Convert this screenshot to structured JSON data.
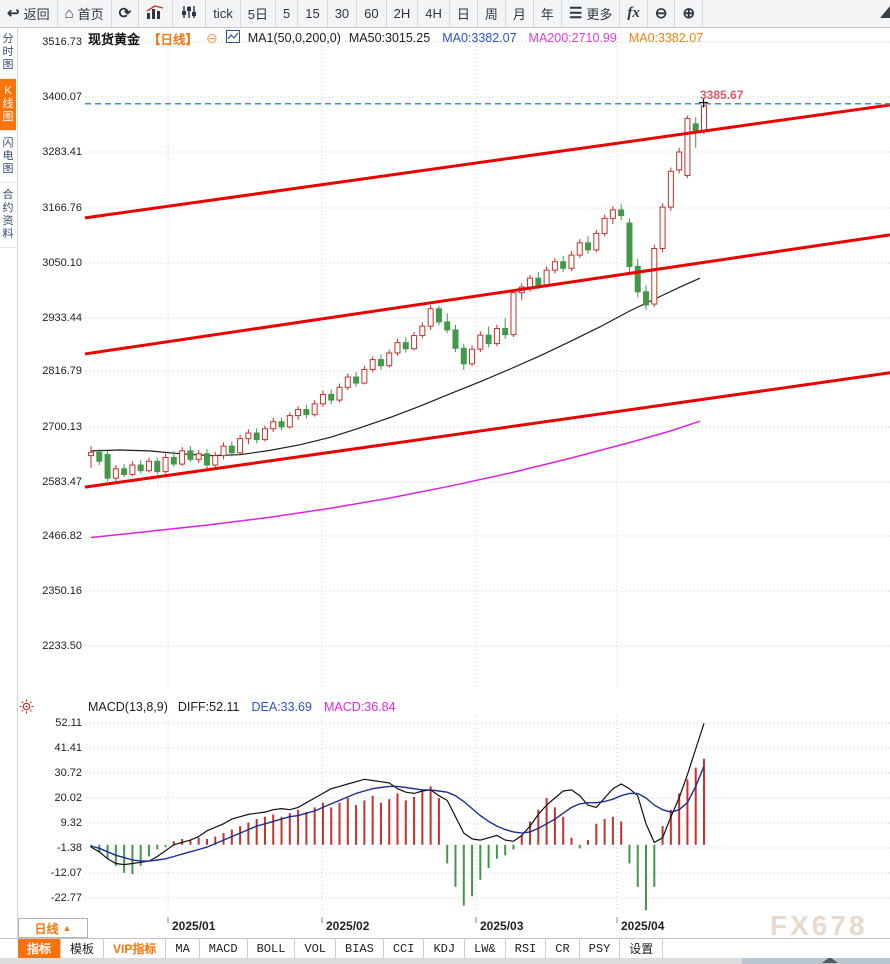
{
  "toolbar": {
    "items": [
      {
        "label": "返回",
        "icon": "back-arrow-icon"
      },
      {
        "label": "首页",
        "icon": "home-icon"
      },
      {
        "label": "",
        "icon": "refresh-icon"
      },
      {
        "label": "",
        "icon": "bar-chart-icon"
      },
      {
        "label": "",
        "icon": "candle-sliders-icon"
      },
      {
        "label": "tick",
        "icon": ""
      },
      {
        "label": "5日",
        "icon": ""
      },
      {
        "label": "5",
        "icon": ""
      },
      {
        "label": "15",
        "icon": ""
      },
      {
        "label": "30",
        "icon": ""
      },
      {
        "label": "60",
        "icon": ""
      },
      {
        "label": "2H",
        "icon": ""
      },
      {
        "label": "4H",
        "icon": ""
      },
      {
        "label": "日",
        "icon": ""
      },
      {
        "label": "周",
        "icon": ""
      },
      {
        "label": "月",
        "icon": ""
      },
      {
        "label": "年",
        "icon": ""
      },
      {
        "label": "更多",
        "icon": "hamburger-icon"
      },
      {
        "label": "fx",
        "icon": "fx-icon"
      },
      {
        "label": "",
        "icon": "zoom-out-icon"
      },
      {
        "label": "",
        "icon": "zoom-in-icon"
      }
    ]
  },
  "sidebar": {
    "items": [
      {
        "label": "分时图",
        "active": false
      },
      {
        "label": "K线图",
        "active": true
      },
      {
        "label": "闪电图",
        "active": false
      },
      {
        "label": "合约资料",
        "active": false
      }
    ]
  },
  "chart_header": {
    "symbol": "现货黄金",
    "period_tag": "【日线】",
    "collapse_icon": "⊖",
    "ma_formula": "MA1(50,0,200,0)",
    "ma_values": [
      {
        "label": "MA50:3015.25",
        "color": "#1d1d1f"
      },
      {
        "label": "MA0:3382.07",
        "color": "#2a52cc"
      },
      {
        "label": "MA200:2710.99",
        "color": "#e23ae2"
      },
      {
        "label": "MA0:3382.07",
        "color": "#f7820c"
      }
    ]
  },
  "price_axis_labels": [
    "3516.73",
    "3400.07",
    "3283.41",
    "3166.76",
    "3050.10",
    "2933.44",
    "2816.79",
    "2700.13",
    "2583.47",
    "2466.82",
    "2350.16",
    "2233.50"
  ],
  "current_price_label": "3385.67",
  "macd_header": {
    "formula": "MACD(13,8,9)",
    "values": [
      {
        "label": "DIFF:52.11",
        "color": "#1d1d1f"
      },
      {
        "label": "DEA:33.69",
        "color": "#2a52cc"
      },
      {
        "label": "MACD:36.84",
        "color": "#ee22ee"
      }
    ]
  },
  "macd_axis_labels": [
    "52.11",
    "41.41",
    "30.72",
    "20.02",
    "9.32",
    "-1.38",
    "-12.07",
    "-22.77"
  ],
  "x_axis": {
    "period_selector": "日线",
    "triangle": "▲",
    "labels": [
      "2025/01",
      "2025/02",
      "2025/03",
      "2025/04"
    ]
  },
  "bottom_tabs": [
    {
      "label": "指标",
      "style": "active"
    },
    {
      "label": "模板",
      "style": "normal"
    },
    {
      "label": "VIP指标",
      "style": "vip"
    },
    {
      "label": "MA",
      "style": "mono"
    },
    {
      "label": "MACD",
      "style": "mono"
    },
    {
      "label": "BOLL",
      "style": "mono"
    },
    {
      "label": "VOL",
      "style": "mono"
    },
    {
      "label": "BIAS",
      "style": "mono"
    },
    {
      "label": "CCI",
      "style": "mono"
    },
    {
      "label": "KDJ",
      "style": "mono"
    },
    {
      "label": "LW&",
      "style": "mono"
    },
    {
      "label": "RSI",
      "style": "mono"
    },
    {
      "label": "CR",
      "style": "mono"
    },
    {
      "label": "PSY",
      "style": "mono"
    },
    {
      "label": "设置",
      "style": "normal"
    }
  ],
  "watermark": "FX678",
  "colors": {
    "accent_orange": "#f7750c",
    "up_red": "#c9302c",
    "down_green": "#43984a",
    "channel_red": "#ea0000",
    "ma50_black": "#1d1d1f",
    "ma200_magenta": "#dd22dd",
    "diff_black": "#111111",
    "dea_navy": "#1a2f8f",
    "dashed_blue": "#3d8fd4",
    "price_label_pink": "#e0566e",
    "grid_gray": "#c9ced6"
  },
  "chart_data": [
    {
      "type": "candlestick",
      "title": "现货黄金 日线 (Spot Gold, daily)",
      "ylim": [
        2233.5,
        3516.73
      ],
      "y_ticks": [
        3516.73,
        3400.07,
        3283.41,
        3166.76,
        3050.1,
        2933.44,
        2816.79,
        2700.13,
        2583.47,
        2466.82,
        2350.16,
        2233.5
      ],
      "x_tick_labels": [
        "2025/01",
        "2025/02",
        "2025/03",
        "2025/04"
      ],
      "grid": true,
      "current_price": 3385.67,
      "ma50_last": 3015.25,
      "ma200_last": 2710.99,
      "candles_ohlc": [
        [
          2638,
          2658,
          2612,
          2645
        ],
        [
          2645,
          2652,
          2618,
          2626
        ],
        [
          2640,
          2648,
          2583,
          2590
        ],
        [
          2590,
          2618,
          2584,
          2610
        ],
        [
          2610,
          2620,
          2592,
          2598
        ],
        [
          2598,
          2626,
          2594,
          2618
        ],
        [
          2618,
          2628,
          2600,
          2606
        ],
        [
          2606,
          2634,
          2602,
          2626
        ],
        [
          2626,
          2634,
          2598,
          2604
        ],
        [
          2604,
          2642,
          2600,
          2634
        ],
        [
          2634,
          2648,
          2614,
          2620
        ],
        [
          2620,
          2656,
          2616,
          2648
        ],
        [
          2648,
          2658,
          2624,
          2630
        ],
        [
          2630,
          2650,
          2622,
          2642
        ],
        [
          2642,
          2652,
          2610,
          2618
        ],
        [
          2618,
          2646,
          2612,
          2638
        ],
        [
          2638,
          2666,
          2630,
          2658
        ],
        [
          2658,
          2668,
          2636,
          2644
        ],
        [
          2644,
          2682,
          2640,
          2674
        ],
        [
          2674,
          2694,
          2662,
          2686
        ],
        [
          2686,
          2696,
          2664,
          2672
        ],
        [
          2672,
          2702,
          2668,
          2695
        ],
        [
          2695,
          2718,
          2688,
          2710
        ],
        [
          2710,
          2719,
          2692,
          2699
        ],
        [
          2699,
          2730,
          2695,
          2723
        ],
        [
          2723,
          2743,
          2714,
          2736
        ],
        [
          2736,
          2746,
          2717,
          2725
        ],
        [
          2725,
          2756,
          2721,
          2748
        ],
        [
          2748,
          2776,
          2742,
          2768
        ],
        [
          2768,
          2779,
          2747,
          2756
        ],
        [
          2756,
          2791,
          2751,
          2783
        ],
        [
          2783,
          2813,
          2777,
          2805
        ],
        [
          2805,
          2816,
          2784,
          2792
        ],
        [
          2792,
          2829,
          2789,
          2821
        ],
        [
          2821,
          2849,
          2815,
          2842
        ],
        [
          2842,
          2853,
          2821,
          2829
        ],
        [
          2829,
          2863,
          2825,
          2856
        ],
        [
          2856,
          2886,
          2850,
          2878
        ],
        [
          2878,
          2889,
          2857,
          2865
        ],
        [
          2865,
          2901,
          2861,
          2893
        ],
        [
          2893,
          2921,
          2888,
          2913
        ],
        [
          2913,
          2958,
          2905,
          2950
        ],
        [
          2950,
          2956,
          2915,
          2922
        ],
        [
          2922,
          2940,
          2898,
          2905
        ],
        [
          2905,
          2916,
          2858,
          2866
        ],
        [
          2866,
          2876,
          2820,
          2833
        ],
        [
          2833,
          2872,
          2828,
          2864
        ],
        [
          2864,
          2902,
          2858,
          2894
        ],
        [
          2894,
          2912,
          2868,
          2876
        ],
        [
          2876,
          2916,
          2870,
          2908
        ],
        [
          2908,
          2930,
          2886,
          2895
        ],
        [
          2895,
          2990,
          2890,
          2984
        ],
        [
          2984,
          3004,
          2968,
          2996
        ],
        [
          2996,
          3022,
          2986,
          3015
        ],
        [
          3015,
          3028,
          2992,
          3000
        ],
        [
          3000,
          3040,
          2995,
          3032
        ],
        [
          3032,
          3058,
          3025,
          3050
        ],
        [
          3050,
          3062,
          3028,
          3036
        ],
        [
          3036,
          3072,
          3030,
          3064
        ],
        [
          3064,
          3098,
          3058,
          3090
        ],
        [
          3090,
          3104,
          3066,
          3075
        ],
        [
          3075,
          3118,
          3070,
          3110
        ],
        [
          3110,
          3150,
          3104,
          3142
        ],
        [
          3142,
          3168,
          3130,
          3160
        ],
        [
          3160,
          3172,
          3138,
          3148
        ],
        [
          3132,
          3142,
          3028,
          3040
        ],
        [
          3040,
          3056,
          2974,
          2986
        ],
        [
          2986,
          3000,
          2948,
          2958
        ],
        [
          2960,
          3086,
          2954,
          3078
        ],
        [
          3078,
          3174,
          3070,
          3166
        ],
        [
          3166,
          3250,
          3158,
          3242
        ],
        [
          3245,
          3292,
          3238,
          3283
        ],
        [
          3233,
          3360,
          3228,
          3354
        ],
        [
          3343,
          3357,
          3292,
          3324
        ],
        [
          3329,
          3386,
          3321,
          3381
        ]
      ],
      "ma50_points": [
        [
          0,
          2648
        ],
        [
          3.5,
          2650
        ],
        [
          7,
          2648
        ],
        [
          10.7,
          2642
        ],
        [
          14.4,
          2638
        ],
        [
          18,
          2640
        ],
        [
          21.6,
          2649
        ],
        [
          25.2,
          2661
        ],
        [
          28.9,
          2677
        ],
        [
          32.5,
          2697
        ],
        [
          36.1,
          2719
        ],
        [
          39.7,
          2743
        ],
        [
          43.3,
          2769
        ],
        [
          47,
          2795
        ],
        [
          50.6,
          2822
        ],
        [
          54.2,
          2850
        ],
        [
          57.8,
          2880
        ],
        [
          61.5,
          2912
        ],
        [
          65.1,
          2946
        ],
        [
          68.7,
          2976
        ],
        [
          71.1,
          2996
        ],
        [
          73.5,
          3015
        ]
      ],
      "ma200_points": [
        [
          0,
          2464
        ],
        [
          7,
          2477
        ],
        [
          14.4,
          2491
        ],
        [
          21.6,
          2507
        ],
        [
          28.9,
          2526
        ],
        [
          36.1,
          2548
        ],
        [
          43.3,
          2573
        ],
        [
          50.6,
          2601
        ],
        [
          57.8,
          2632
        ],
        [
          65.1,
          2666
        ],
        [
          69.9,
          2690
        ],
        [
          73.5,
          2711
        ]
      ],
      "channel_lines": [
        {
          "p_left": 3143,
          "p_right": 3383
        },
        {
          "p_left": 2854,
          "p_right": 3107
        },
        {
          "p_left": 2571,
          "p_right": 2814
        }
      ]
    },
    {
      "type": "macd",
      "params": "(13,8,9)",
      "diff_last": 52.11,
      "dea_last": 33.69,
      "macd_last": 36.84,
      "ylim": [
        -22.77,
        52.11
      ],
      "y_ticks": [
        52.11,
        41.41,
        30.72,
        20.02,
        9.32,
        -1.38,
        -12.07,
        -22.77
      ],
      "histogram": [
        -1,
        -3,
        -6,
        -9,
        -12,
        -12.5,
        -9,
        -5,
        -2,
        -1,
        1.5,
        2.5,
        2,
        3,
        2.5,
        3.5,
        5,
        6.5,
        8,
        9.5,
        11,
        12,
        13,
        12,
        13.5,
        15,
        14,
        16,
        18,
        16,
        18,
        20,
        17,
        19,
        21,
        18,
        19.5,
        22,
        19,
        20.5,
        23,
        25,
        20,
        -8,
        -18,
        -26,
        -22,
        -15,
        -10,
        -6,
        -4.5,
        -2,
        4,
        10,
        15,
        20,
        16,
        12,
        3,
        -1.5,
        2,
        9,
        11,
        12,
        10,
        -8,
        -18,
        -28,
        -18,
        8,
        15,
        22,
        28,
        33,
        36.8
      ],
      "diff_series": [
        -1,
        -3,
        -6,
        -8,
        -8.5,
        -8,
        -7.5,
        -7,
        -5,
        -2.5,
        0,
        1,
        2,
        3.5,
        6,
        7.5,
        9,
        11,
        12,
        13,
        13.5,
        14,
        15,
        15.5,
        15,
        16,
        18,
        20,
        22,
        24,
        25,
        26,
        27,
        28,
        27.5,
        27,
        26.5,
        24,
        22.5,
        22,
        23,
        23.5,
        21,
        19,
        12,
        5,
        2.5,
        2,
        3,
        4,
        2,
        1.5,
        4,
        8,
        13,
        17,
        20,
        23,
        23.5,
        21,
        17,
        16,
        20,
        24,
        26,
        24,
        21,
        9,
        1,
        3,
        12,
        20,
        30,
        41,
        52
      ],
      "dea_series": [
        -0.5,
        -1.5,
        -3,
        -4.5,
        -5.5,
        -6.5,
        -7,
        -7,
        -6.5,
        -6,
        -5,
        -4,
        -3,
        -2,
        -1,
        0.5,
        2,
        3.5,
        5,
        6.5,
        8,
        9,
        10,
        11,
        12,
        12.5,
        13.5,
        14.5,
        16,
        17.5,
        19,
        20.5,
        22,
        23,
        24,
        24.5,
        25,
        25,
        24.5,
        24,
        23.5,
        23.5,
        23,
        22.5,
        21,
        18.5,
        15.5,
        12.5,
        10,
        8,
        6.5,
        5.5,
        5,
        5.5,
        7,
        9,
        11,
        13.5,
        16,
        17.5,
        18,
        18,
        18.5,
        19.5,
        21,
        22,
        22,
        20,
        17,
        15,
        14,
        15,
        18,
        25,
        33.7
      ]
    }
  ]
}
